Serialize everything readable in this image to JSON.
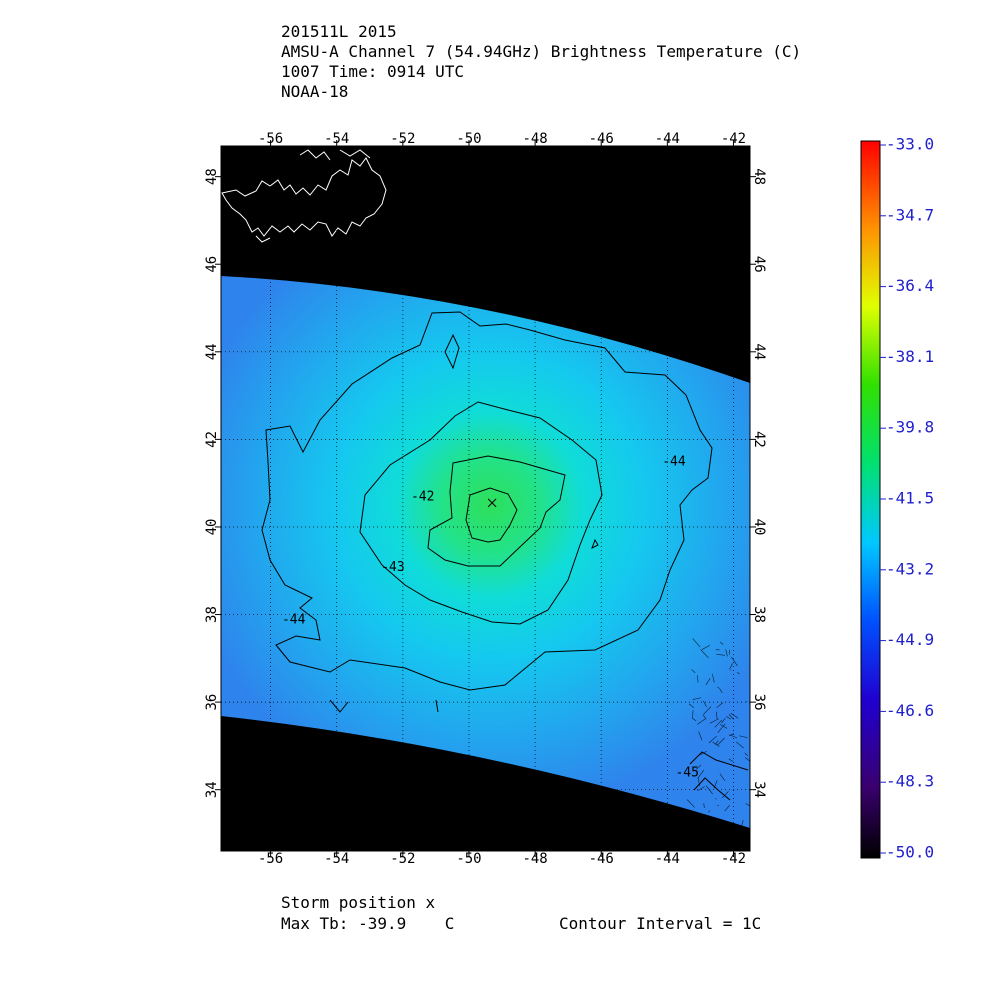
{
  "header": {
    "line1": "201511L 2015",
    "line2": "AMSU-A Channel 7 (54.94GHz) Brightness Temperature (C)",
    "line3": "1007 Time: 0914 UTC",
    "line4": "NOAA-18"
  },
  "footer": {
    "storm_label": "Storm position x",
    "max_tb": "Max Tb: -39.9    C",
    "contour_interval": "Contour Interval = 1C"
  },
  "colors": {
    "swath_edge": "#2f83ec",
    "swath_mid": "#10d9ef",
    "swath_core": "#2ee05a",
    "missing": "#000000",
    "coast": "#ffffff",
    "contour": "#000000",
    "colorbar_labels": "#2020cc"
  },
  "chart_data": {
    "type": "heatmap",
    "title": "AMSU-A Channel 7 (54.94GHz) Brightness Temperature (C)",
    "x_axis": {
      "range": [
        -57.5,
        -41.5
      ],
      "ticks": [
        -56,
        -54,
        -52,
        -50,
        -48,
        -46,
        -44,
        -42
      ],
      "tick_labels": [
        "-56",
        "-54",
        "-52",
        "-50",
        "-48",
        "-46",
        "-44",
        "-42"
      ]
    },
    "y_axis": {
      "range": [
        32.6,
        48.7
      ],
      "ticks": [
        34,
        36,
        38,
        40,
        42,
        44,
        46,
        48
      ],
      "tick_labels": [
        "34",
        "36",
        "38",
        "40",
        "42",
        "44",
        "46",
        "48"
      ]
    },
    "grid": true,
    "colorbar": {
      "range": [
        -50.0,
        -33.0
      ],
      "tick_labels": [
        "-33.0",
        "-34.7",
        "-36.4",
        "-38.1",
        "-39.8",
        "-41.5",
        "-43.2",
        "-44.9",
        "-46.6",
        "-48.3",
        "-50.0"
      ]
    },
    "swath": {
      "top_edge_lat": [
        [
          -57.5,
          46.0
        ],
        [
          -49.5,
          45.3
        ],
        [
          -41.5,
          43.6
        ]
      ],
      "bottom_edge_lat": [
        [
          -57.5,
          36.0
        ],
        [
          -49.5,
          35.4
        ],
        [
          -41.5,
          33.3
        ]
      ]
    },
    "contour_labels": [
      {
        "text": "-42",
        "lon": -51.4,
        "lat": 40.6
      },
      {
        "text": "-43",
        "lon": -52.3,
        "lat": 39.0
      },
      {
        "text": "-44",
        "lon": -43.8,
        "lat": 41.4
      },
      {
        "text": "-44",
        "lon": -55.3,
        "lat": 37.8
      },
      {
        "text": "-45",
        "lon": -43.4,
        "lat": 34.3
      }
    ],
    "storm_position": {
      "lon": -49.3,
      "lat": 40.55
    },
    "max_tb": -39.9
  }
}
